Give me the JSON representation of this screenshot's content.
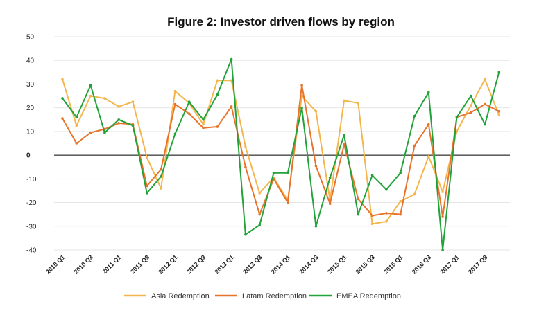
{
  "chart_data": {
    "type": "line",
    "title": "Figure 2: Investor driven flows by region",
    "ylim": [
      -40,
      50
    ],
    "yticks": [
      50,
      40,
      30,
      20,
      10,
      0,
      -10,
      -20,
      -30,
      -40
    ],
    "grid": true,
    "legend_position": "bottom-center",
    "x_labels": [
      "2010 Q1",
      "2010 Q3",
      "2011 Q1",
      "2011 Q3",
      "2012 Q1",
      "2012 Q3",
      "2013 Q1",
      "2013 Q3",
      "2014 Q1",
      "2014 Q3",
      "2015 Q1",
      "2015 Q3",
      "2016 Q1",
      "2016 Q3",
      "2017 Q1",
      "2017 Q3"
    ],
    "x": [
      "2010 Q1",
      "2010 Q2",
      "2010 Q3",
      "2010 Q4",
      "2011 Q1",
      "2011 Q2",
      "2011 Q3",
      "2011 Q4",
      "2012 Q1",
      "2012 Q2",
      "2012 Q3",
      "2012 Q4",
      "2013 Q1",
      "2013 Q2",
      "2013 Q3",
      "2013 Q4",
      "2014 Q1",
      "2014 Q2",
      "2014 Q3",
      "2014 Q4",
      "2015 Q1",
      "2015 Q2",
      "2015 Q3",
      "2015 Q4",
      "2016 Q1",
      "2016 Q2",
      "2016 Q3",
      "2016 Q4",
      "2017 Q1",
      "2017 Q2",
      "2017 Q3",
      "2017 Q4"
    ],
    "series": [
      {
        "name": "Asia Redemption",
        "color": "#f4b54c",
        "values": [
          32,
          12.5,
          25,
          24,
          20.5,
          22.5,
          -1,
          -14,
          27,
          22,
          13,
          31.5,
          31.5,
          3.5,
          -16,
          -9.5,
          -19,
          25,
          18.5,
          -19,
          23,
          22,
          -29,
          -28,
          -19.5,
          -16.5,
          -0.5,
          -15.5,
          10,
          21,
          32,
          17
        ]
      },
      {
        "name": "Latam Redemption",
        "color": "#e8732a",
        "values": [
          15.5,
          5,
          9.5,
          11,
          13.5,
          13,
          -13,
          -6,
          21.5,
          17.5,
          11.5,
          12,
          20.5,
          -5,
          -25,
          -10,
          -20,
          29.5,
          -4.5,
          -20.5,
          4.5,
          -18.5,
          -25.5,
          -24.5,
          -25,
          4,
          13,
          -26,
          16,
          18,
          21.5,
          18.5
        ]
      },
      {
        "name": "EMEA Redemption",
        "color": "#22a238",
        "values": [
          24,
          16,
          29.5,
          9.5,
          15,
          12.5,
          -16,
          -9,
          9,
          22.5,
          15,
          25.5,
          40.5,
          -33.5,
          -29.5,
          -7.5,
          -7.5,
          20,
          -30,
          -9.5,
          8.5,
          -25,
          -8.5,
          -14.5,
          -7.5,
          16.5,
          26.5,
          -40,
          16,
          25,
          13,
          35
        ]
      }
    ]
  }
}
